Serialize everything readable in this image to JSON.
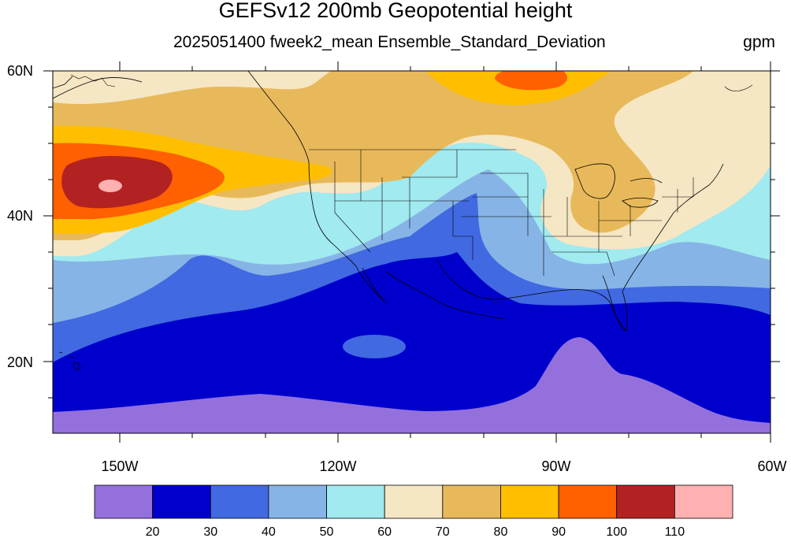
{
  "title": "GEFSv12 200mb Geopotential height",
  "subtitle": "2025051400 fweek2_mean Ensemble_Standard_Deviation",
  "units": "gpm",
  "map": {
    "lon_labels": [
      "150W",
      "120W",
      "90W",
      "60W"
    ],
    "lat_labels": [
      "60N",
      "40N",
      "20N"
    ],
    "lon_range": [
      "160W",
      "60W"
    ],
    "lat_range": [
      "10N",
      "60N"
    ]
  },
  "colorbar": {
    "levels": [
      "20",
      "30",
      "40",
      "50",
      "60",
      "70",
      "80",
      "90",
      "100",
      "110"
    ],
    "colors": [
      "#9370db",
      "#0000cd",
      "#4169e1",
      "#87b4e6",
      "#a0eaf0",
      "#f5e6c4",
      "#e8b95a",
      "#ffbf00",
      "#ff6000",
      "#b22222",
      "#ffb0b0"
    ]
  }
}
